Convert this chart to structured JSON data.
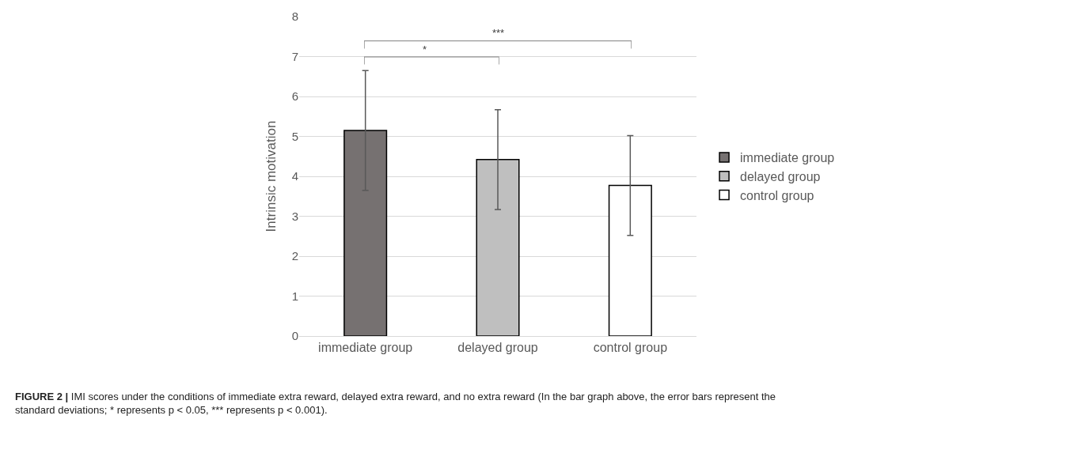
{
  "chart_data": {
    "type": "bar",
    "ylabel": "Intrinsic motivation",
    "categories": [
      "immediate group",
      "delayed group",
      "control group"
    ],
    "series": [
      {
        "name": "immediate group",
        "color": "#767171",
        "values": [
          5.15,
          null,
          null
        ],
        "errors": [
          1.5,
          null,
          null
        ]
      },
      {
        "name": "delayed group",
        "color": "#bfbfbf",
        "values": [
          null,
          4.42,
          null
        ],
        "errors": [
          null,
          1.25,
          null
        ]
      },
      {
        "name": "control group",
        "color": "#ffffff",
        "values": [
          null,
          null,
          3.77
        ],
        "errors": [
          null,
          null,
          1.25
        ]
      }
    ],
    "ylim": [
      0,
      8
    ],
    "yticks": [
      0,
      1,
      2,
      3,
      4,
      5,
      6,
      7,
      8
    ],
    "grid": "y",
    "legend": "right",
    "annotations": [
      "*",
      "***",
      "FIGURE 2 | IMI scores under the conditions of immediate extra reward, delayed extra reward, and no extra reward (In the bar graph above, the error bars represent the standard deviations; * represents p < 0.05, *** represents p < 0.001)."
    ]
  }
}
